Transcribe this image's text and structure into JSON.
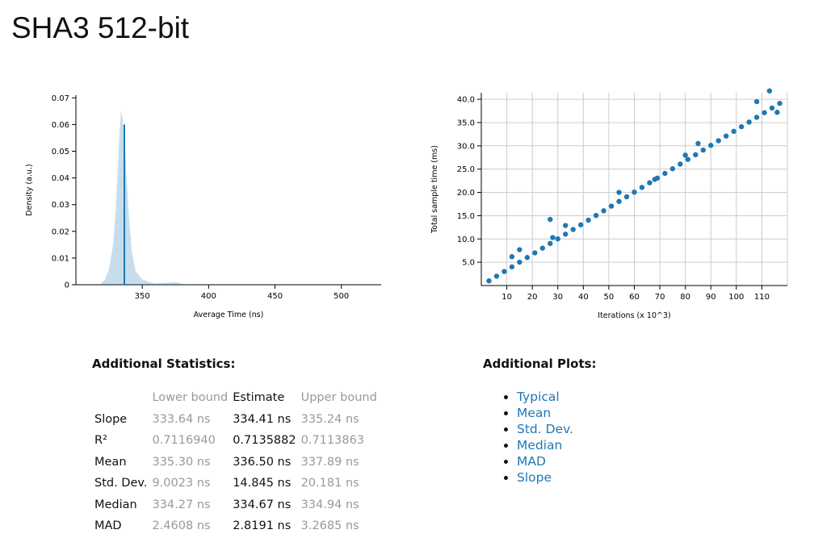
{
  "title": "SHA3 512-bit",
  "chart_data": [
    {
      "type": "area",
      "xlabel": "Average Time (ns)",
      "ylabel": "Density (a.u.)",
      "color": "#1f78b4",
      "x": [
        318,
        322,
        325,
        328,
        330,
        332,
        333,
        334,
        335,
        336,
        338,
        340,
        342,
        345,
        350,
        355,
        360,
        370,
        375,
        380,
        390
      ],
      "values": [
        0,
        0.002,
        0.006,
        0.015,
        0.028,
        0.048,
        0.058,
        0.065,
        0.063,
        0.058,
        0.042,
        0.025,
        0.013,
        0.005,
        0.002,
        0.001,
        0.0005,
        0.0008,
        0.001,
        0.0003,
        0
      ],
      "mean_line": {
        "x": 336.5,
        "y": 0.06
      },
      "xlim": [
        300,
        530
      ],
      "ylim": [
        0,
        0.071
      ],
      "xticks": [
        350,
        400,
        450,
        500
      ],
      "yticks": [
        0,
        0.01,
        0.02,
        0.03,
        0.04,
        0.05,
        0.06,
        0.07
      ],
      "grid": false
    },
    {
      "type": "scatter",
      "xlabel": "Iterations (x 10^3)",
      "ylabel": "Total sample time (ms)",
      "color": "#1f78b4",
      "x": [
        3,
        6,
        9,
        12,
        12,
        15,
        15,
        18,
        21,
        24,
        27,
        27,
        28,
        30,
        33,
        33,
        36,
        39,
        42,
        45,
        48,
        51,
        54,
        54,
        57,
        60,
        63,
        66,
        68,
        69,
        72,
        75,
        78,
        80,
        81,
        84,
        85,
        87,
        90,
        93,
        96,
        99,
        102,
        105,
        108,
        108,
        111,
        113,
        114,
        116,
        117
      ],
      "values": [
        1.0,
        2.01,
        3.01,
        4.01,
        6.2,
        5.02,
        7.7,
        6.02,
        7.02,
        8.03,
        9.03,
        14.2,
        10.3,
        10.03,
        11.04,
        12.9,
        12.04,
        13.04,
        14.04,
        15.05,
        16.05,
        17.05,
        18.06,
        20.0,
        19.06,
        20.06,
        21.07,
        22.07,
        22.8,
        23.07,
        24.08,
        25.08,
        26.08,
        28.0,
        27.09,
        28.09,
        30.5,
        29.09,
        30.1,
        31.1,
        32.1,
        33.11,
        34.11,
        35.11,
        36.12,
        39.5,
        37.12,
        41.8,
        38.12,
        37.2,
        39.12
      ],
      "xlim": [
        0,
        120
      ],
      "ylim": [
        0,
        41.4
      ],
      "xticks": [
        10,
        20,
        30,
        40,
        50,
        60,
        70,
        80,
        90,
        100,
        110
      ],
      "yticks": [
        {
          "value": 5,
          "label": "5.0"
        },
        {
          "value": 10,
          "label": "10.0"
        },
        {
          "value": 15,
          "label": "15.0"
        },
        {
          "value": 20,
          "label": "20.0"
        },
        {
          "value": 25,
          "label": "25.0"
        },
        {
          "value": 30,
          "label": "30.0"
        },
        {
          "value": 35,
          "label": "35.0"
        },
        {
          "value": 40,
          "label": "40.0"
        }
      ],
      "grid": true
    }
  ],
  "statistics": {
    "heading": "Additional Statistics:",
    "columns": [
      "Lower bound",
      "Estimate",
      "Upper bound"
    ],
    "rows": [
      [
        "Slope",
        "333.64 ns",
        "334.41 ns",
        "335.24 ns"
      ],
      [
        "R²",
        "0.7116940",
        "0.7135882",
        "0.7113863"
      ],
      [
        "Mean",
        "335.30 ns",
        "336.50 ns",
        "337.89 ns"
      ],
      [
        "Std. Dev.",
        "9.0023 ns",
        "14.845 ns",
        "20.181 ns"
      ],
      [
        "Median",
        "334.27 ns",
        "334.67 ns",
        "334.94 ns"
      ],
      [
        "MAD",
        "2.4608 ns",
        "2.8191 ns",
        "3.2685 ns"
      ]
    ]
  },
  "plots": {
    "heading": "Additional Plots:",
    "links": [
      "Typical",
      "Mean",
      "Std. Dev.",
      "Median",
      "MAD",
      "Slope"
    ]
  }
}
